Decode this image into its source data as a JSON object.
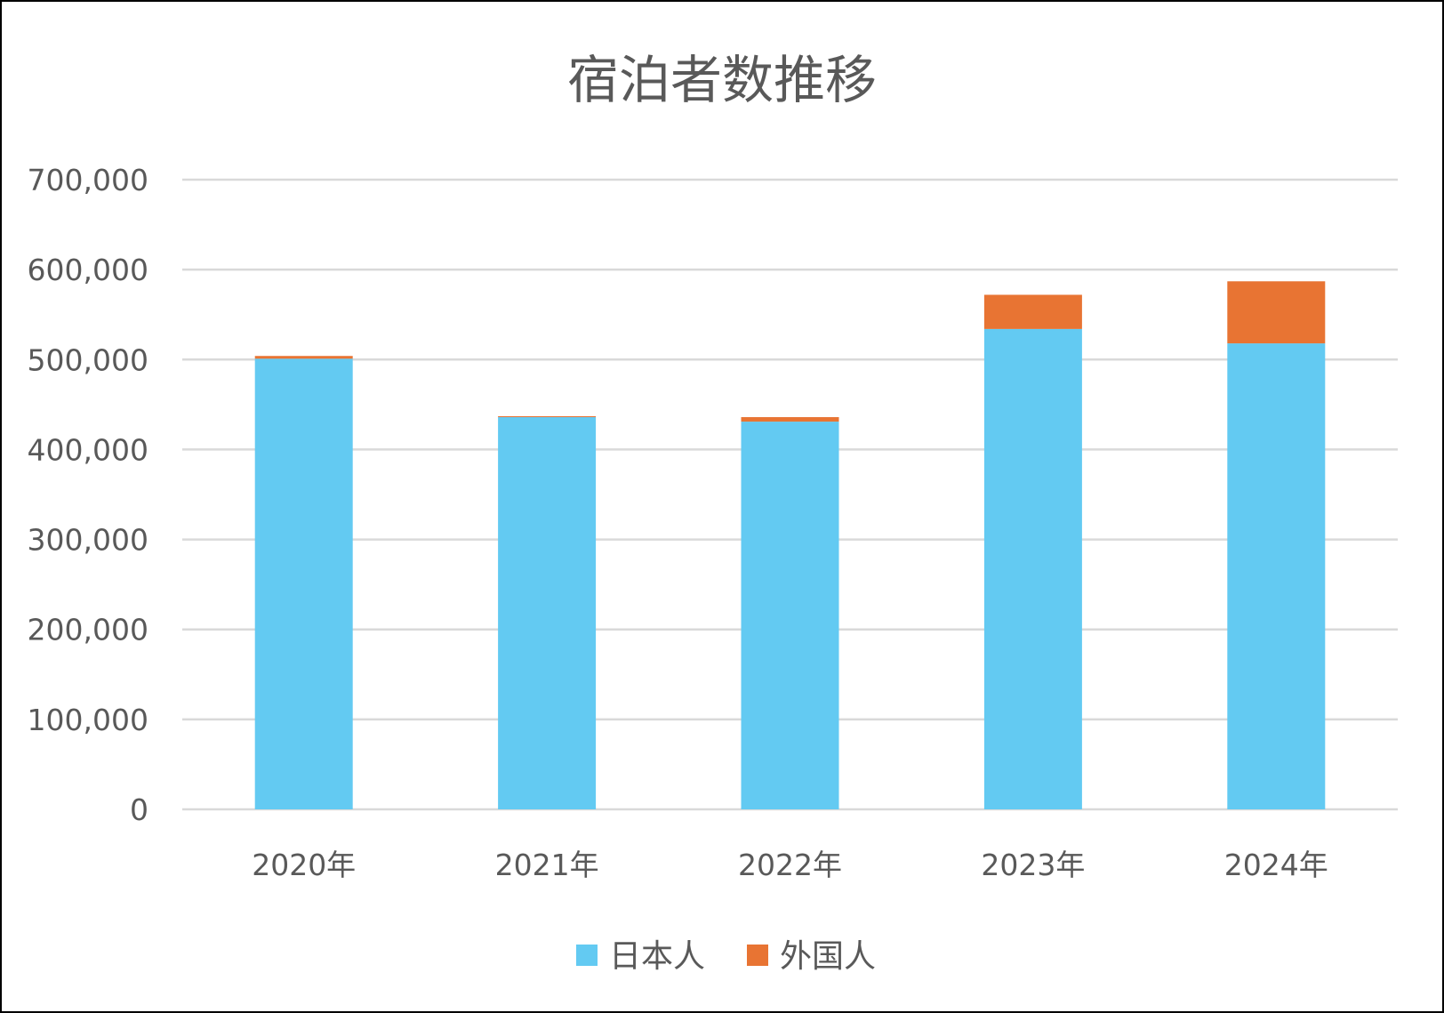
{
  "chart_data": {
    "type": "bar",
    "stacked": true,
    "title": "宿泊者数推移",
    "categories": [
      "2020年",
      "2021年",
      "2022年",
      "2023年",
      "2024年"
    ],
    "series": [
      {
        "name": "日本人",
        "color": "#63CAF2",
        "values": [
          501000,
          436000,
          431000,
          534000,
          518000
        ]
      },
      {
        "name": "外国人",
        "color": "#E87433",
        "values": [
          3000,
          1000,
          5000,
          38000,
          69000
        ]
      }
    ],
    "ylim": [
      0,
      700000
    ],
    "yticks": [
      0,
      100000,
      200000,
      300000,
      400000,
      500000,
      600000,
      700000
    ],
    "ytick_labels": [
      "0",
      "100,000",
      "200,000",
      "300,000",
      "400,000",
      "500,000",
      "600,000",
      "700,000"
    ],
    "grid": true,
    "gridline_color": "#D9D9D9",
    "legend_position": "bottom",
    "xlabel": "",
    "ylabel": ""
  }
}
